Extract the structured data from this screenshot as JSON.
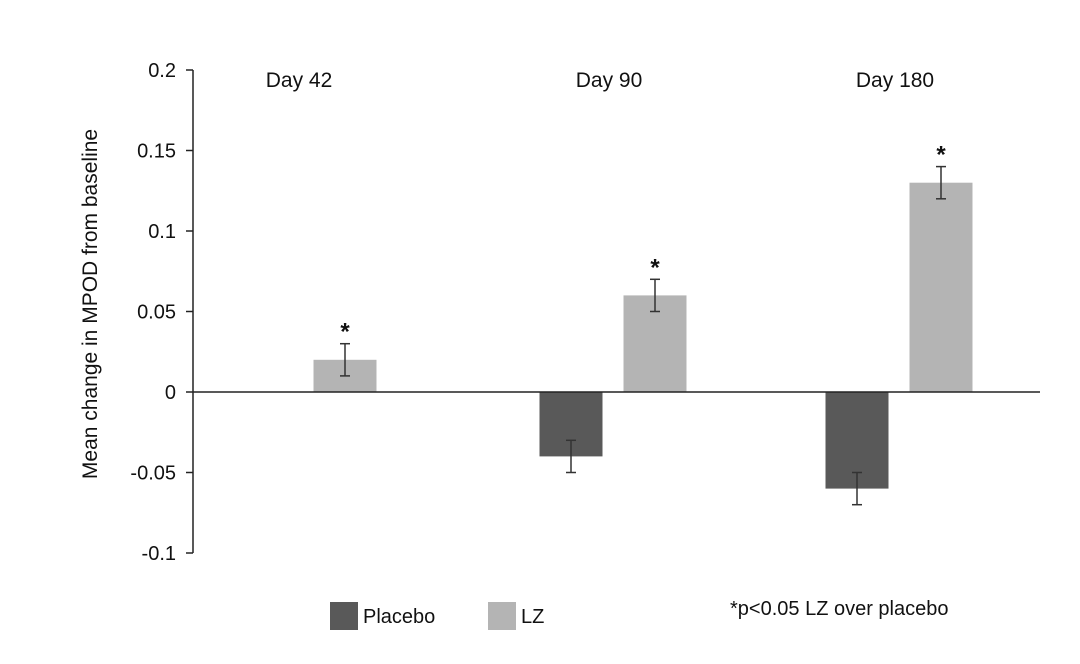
{
  "chart_data": {
    "type": "bar",
    "categories": [
      "Day 42",
      "Day 90",
      "Day 180"
    ],
    "series": [
      {
        "name": "Placebo",
        "values": [
          0,
          -0.04,
          -0.06
        ],
        "errors": [
          0,
          0.01,
          0.01
        ],
        "color": "#595959"
      },
      {
        "name": "LZ",
        "values": [
          0.02,
          0.06,
          0.13
        ],
        "errors": [
          0.01,
          0.01,
          0.01
        ],
        "color": "#b4b4b4"
      }
    ],
    "significance_markers": [
      {
        "category": "Day 42",
        "series": "LZ",
        "label": "*"
      },
      {
        "category": "Day 90",
        "series": "LZ",
        "label": "*"
      },
      {
        "category": "Day 180",
        "series": "LZ",
        "label": "*"
      }
    ],
    "title": "",
    "xlabel": "",
    "ylabel": "Mean change in MPOD from baseline",
    "ylim": [
      -0.1,
      0.2
    ],
    "yticks": [
      -0.1,
      -0.05,
      0,
      0.05,
      0.1,
      0.15,
      0.2
    ],
    "ytick_labels": [
      "-0.1",
      "-0.05",
      "0",
      "0.05",
      "0.1",
      "0.15",
      "0.2"
    ],
    "grid": false,
    "legend_position": "bottom",
    "footnote": "*p<0.05 LZ over placebo"
  }
}
